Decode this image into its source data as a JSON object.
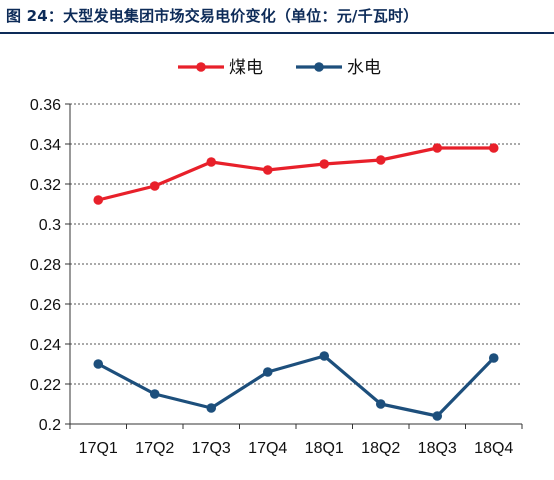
{
  "figure": {
    "title": "图 24：大型发电集团市场交易电价变化（单位：元/千瓦时）"
  },
  "chart_data": {
    "type": "line",
    "categories": [
      "17Q1",
      "17Q2",
      "17Q3",
      "17Q4",
      "18Q1",
      "18Q2",
      "18Q3",
      "18Q4"
    ],
    "series": [
      {
        "name": "煤电",
        "color": "#e8202a",
        "values": [
          0.312,
          0.319,
          0.331,
          0.327,
          0.33,
          0.332,
          0.338,
          0.338
        ]
      },
      {
        "name": "水电",
        "color": "#1d4f7c",
        "values": [
          0.23,
          0.215,
          0.208,
          0.226,
          0.234,
          0.21,
          0.204,
          0.233
        ]
      }
    ],
    "ylim": [
      0.2,
      0.36
    ],
    "yticks": [
      "0.2",
      "0.22",
      "0.24",
      "0.26",
      "0.28",
      "0.3",
      "0.32",
      "0.34",
      "0.36"
    ],
    "grid": "horizontal-dashed",
    "legend": "top-center"
  }
}
